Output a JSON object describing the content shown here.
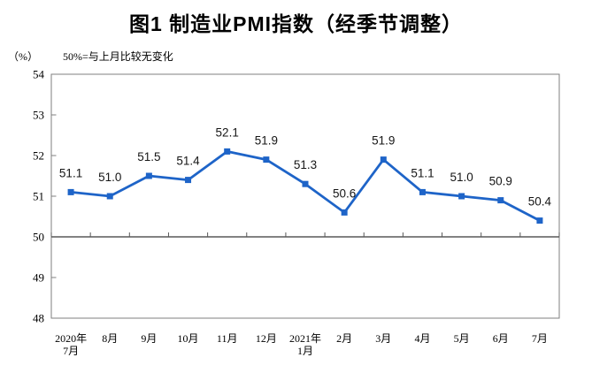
{
  "title": "图1 制造业PMI指数（经季节调整）",
  "unit_label": "（%）",
  "reference_note": "50%=与上月比较无变化",
  "colors": {
    "line": "#1E64C8",
    "frame": "#7F7F7F",
    "reference_axis": "#595959",
    "text": "#000000"
  },
  "chart_data": {
    "type": "line",
    "title": "图1 制造业PMI指数（经季节调整）",
    "ylabel": "（%）",
    "annotation": "50%=与上月比较无变化",
    "categories": [
      [
        "2020年",
        "7月"
      ],
      [
        "8月"
      ],
      [
        "9月"
      ],
      [
        "10月"
      ],
      [
        "11月"
      ],
      [
        "12月"
      ],
      [
        "2021年",
        "1月"
      ],
      [
        "2月"
      ],
      [
        "3月"
      ],
      [
        "4月"
      ],
      [
        "5月"
      ],
      [
        "6月"
      ],
      [
        "7月"
      ]
    ],
    "values": [
      51.1,
      51.0,
      51.5,
      51.4,
      52.1,
      51.9,
      51.3,
      50.6,
      51.9,
      51.1,
      51.0,
      50.9,
      50.4
    ],
    "point_labels": [
      "51.1",
      "51.0",
      "51.5",
      "51.4",
      "52.1",
      "51.9",
      "51.3",
      "50.6",
      "51.9",
      "51.1",
      "51.0",
      "50.9",
      "50.4"
    ],
    "ylim": [
      48,
      54
    ],
    "ytick_step": 1,
    "ytick_labels": [
      "48",
      "49",
      "50",
      "51",
      "52",
      "53",
      "54"
    ],
    "reference_line": 50,
    "grid": false,
    "legend": "none",
    "marker": "square"
  }
}
